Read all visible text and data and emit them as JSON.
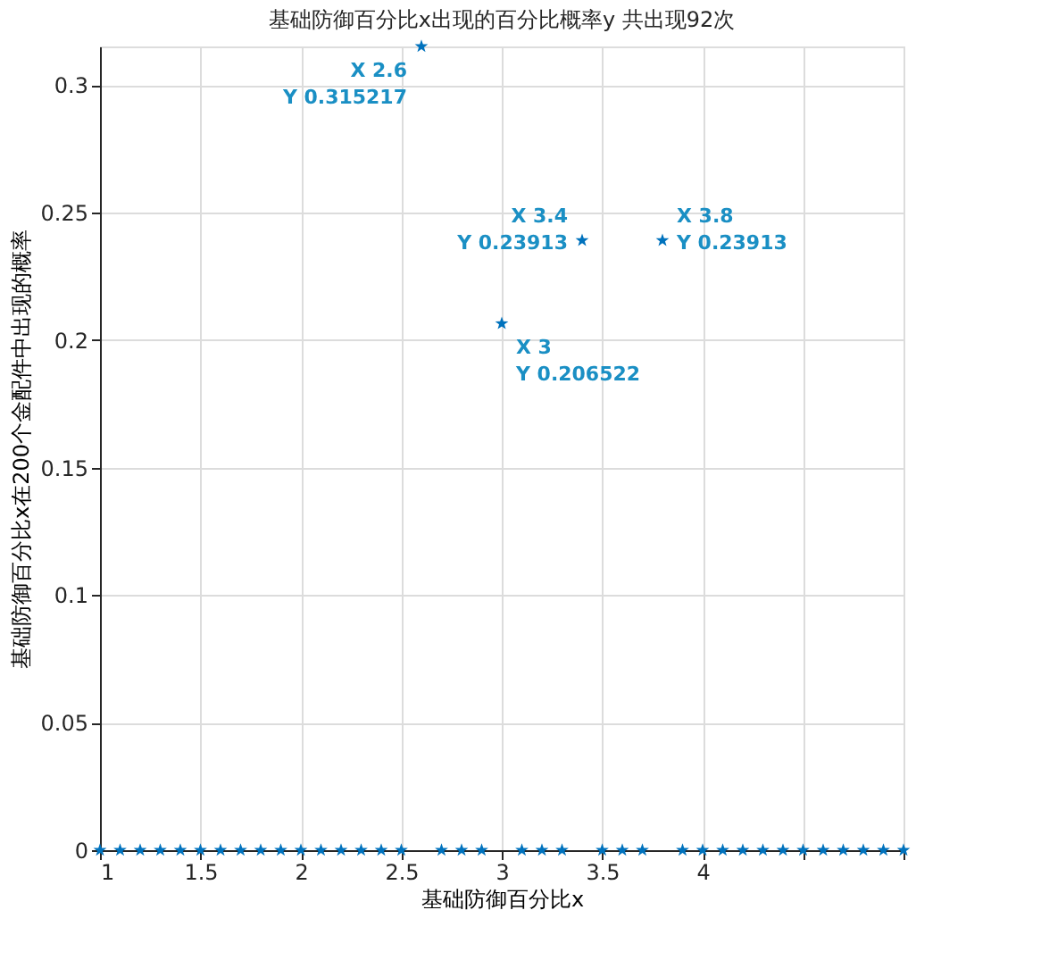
{
  "chart_data": {
    "type": "scatter",
    "title": "基础防御百分比x出现的百分比概率y   共出现92次",
    "xlabel": "基础防御百分比x",
    "ylabel": "基础防御百分比x在200个金配件中出现的概率",
    "x": [
      1.0,
      1.1,
      1.2,
      1.3,
      1.4,
      1.5,
      1.6,
      1.7,
      1.8,
      1.9,
      2.0,
      2.1,
      2.2,
      2.3,
      2.4,
      2.5,
      2.6,
      2.7,
      2.8,
      2.9,
      3.0,
      3.1,
      3.2,
      3.3,
      3.4,
      3.5,
      3.6,
      3.7,
      3.8,
      3.9,
      4.0,
      4.1,
      4.2,
      4.3,
      4.4,
      4.5,
      4.6,
      4.7,
      4.8,
      4.9,
      5.0
    ],
    "series": [
      {
        "color": "#0072bd",
        "values": [
          0,
          0,
          0,
          0,
          0,
          0,
          0,
          0,
          0,
          0,
          0,
          0,
          0,
          0,
          0,
          0,
          0.315217,
          0,
          0,
          0,
          0.206522,
          0,
          0,
          0,
          0.23913,
          0,
          0,
          0,
          0.23913,
          0,
          0,
          0,
          0,
          0,
          0,
          0,
          0,
          0,
          0,
          0,
          0
        ]
      }
    ],
    "xlim": [
      1,
      5
    ],
    "xticks": [
      1,
      1.5,
      2,
      2.5,
      3,
      3.5,
      4,
      {
        "value": 4.5,
        "label": null
      },
      {
        "value": 5,
        "label": null
      }
    ],
    "ylim": [
      0,
      0.315217
    ],
    "yticks": [
      0,
      0.05,
      0.1,
      0.15,
      0.2,
      0.25,
      0.3
    ],
    "grid": true,
    "marker": "star",
    "annotations": [
      {
        "text": "X 2.6\nY 0.315217",
        "x": 2.6,
        "y": 0.315217
      },
      {
        "text": "X 3.4\nY 0.23913",
        "x": 3.4,
        "y": 0.23913
      },
      {
        "text": "X 3.8\nY 0.23913",
        "x": 3.8,
        "y": 0.23913
      },
      {
        "text": "X 3\nY 0.206522",
        "x": 3,
        "y": 0.206522
      }
    ]
  }
}
